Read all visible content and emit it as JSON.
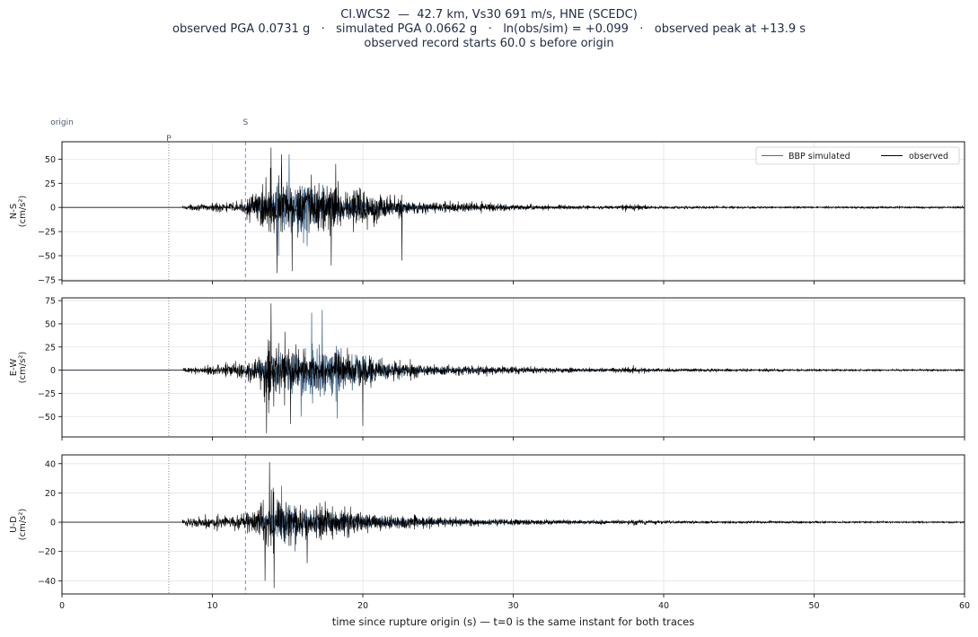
{
  "title": {
    "line1": "CI.WCS2  —  42.7 km, Vs30 691 m/s, HNE (SCEDC)",
    "line2": "observed PGA 0.0731 g   ·   simulated PGA 0.0662 g   ·   ln(obs/sim) = +0.099   ·   observed peak at +13.9 s",
    "line3": "observed record starts 60.0 s before origin"
  },
  "markers": {
    "origin_label": "origin",
    "p_label": "P",
    "s_label": "S",
    "p_time": 7.1,
    "s_time": 12.2
  },
  "xlabel": "time since rupture origin (s)   —   t=0 is the same instant for both traces",
  "xlim": [
    0,
    60
  ],
  "xticks": [
    "0",
    "10",
    "20",
    "30",
    "40",
    "50",
    "60"
  ],
  "legend": {
    "simulated": "BBP simulated",
    "observed": "observed"
  },
  "colors": {
    "observed": "#000000",
    "simulated": "#4a6f95",
    "p_line": "#888888",
    "s_line": "#7b86d9",
    "grid": "#e3e3e3",
    "marker_text": "#4b5777"
  },
  "chart_data": {
    "type": "line",
    "x_unit": "s",
    "xlim": [
      0,
      60
    ],
    "series": [
      {
        "name": "observed",
        "color": "#000000"
      },
      {
        "name": "BBP simulated",
        "color": "#4a6f95"
      }
    ],
    "panels": [
      {
        "component": "N-S",
        "unit": "(cm/s²)",
        "ylim": [
          -76,
          68
        ],
        "yticks": [
          "50",
          "25",
          "0",
          "−25",
          "−50",
          "−75"
        ],
        "ytick_values": [
          50,
          25,
          0,
          -25,
          -50,
          -75
        ],
        "onset": 8.0,
        "observed_envelope": [
          [
            8,
            4
          ],
          [
            10,
            8
          ],
          [
            12,
            12
          ],
          [
            13,
            35
          ],
          [
            14,
            65
          ],
          [
            15,
            48
          ],
          [
            16,
            55
          ],
          [
            17,
            52
          ],
          [
            18,
            46
          ],
          [
            19,
            40
          ],
          [
            20,
            45
          ],
          [
            21,
            30
          ],
          [
            22,
            22
          ],
          [
            24,
            13
          ],
          [
            26,
            10
          ],
          [
            28,
            9
          ],
          [
            30,
            6
          ],
          [
            34,
            4
          ],
          [
            37,
            3
          ],
          [
            38,
            10
          ],
          [
            39,
            3
          ],
          [
            45,
            2
          ],
          [
            60,
            2
          ]
        ],
        "observed_peaks": [
          [
            13.9,
            62
          ],
          [
            14.3,
            -68
          ],
          [
            15.3,
            -66
          ],
          [
            17.9,
            -60
          ],
          [
            22.6,
            -55
          ],
          [
            14.6,
            55
          ],
          [
            18.2,
            45
          ]
        ],
        "simulated_envelope": [
          [
            12.2,
            2
          ],
          [
            13.2,
            20
          ],
          [
            14,
            45
          ],
          [
            15,
            52
          ],
          [
            16,
            50
          ],
          [
            17,
            40
          ],
          [
            18,
            30
          ],
          [
            19,
            22
          ],
          [
            21,
            12
          ],
          [
            24,
            6
          ],
          [
            28,
            3
          ],
          [
            32,
            2
          ],
          [
            35,
            1
          ],
          [
            40,
            0
          ]
        ],
        "simulated_peaks": [
          [
            15.1,
            55
          ],
          [
            14.4,
            -50
          ],
          [
            16.3,
            -40
          ]
        ]
      },
      {
        "component": "E-W",
        "unit": "(cm/s²)",
        "ylim": [
          -72,
          78
        ],
        "yticks": [
          "75",
          "50",
          "25",
          "0",
          "−25",
          "−50"
        ],
        "ytick_values": [
          75,
          50,
          25,
          0,
          -25,
          -50
        ],
        "onset": 8.0,
        "observed_envelope": [
          [
            8,
            4
          ],
          [
            10,
            10
          ],
          [
            12,
            18
          ],
          [
            13,
            40
          ],
          [
            13.8,
            70
          ],
          [
            15,
            45
          ],
          [
            16,
            42
          ],
          [
            17,
            38
          ],
          [
            18,
            35
          ],
          [
            19,
            34
          ],
          [
            20,
            32
          ],
          [
            21,
            25
          ],
          [
            22,
            20
          ],
          [
            24,
            14
          ],
          [
            26,
            10
          ],
          [
            28,
            9
          ],
          [
            30,
            8
          ],
          [
            34,
            5
          ],
          [
            37,
            4
          ],
          [
            38,
            8
          ],
          [
            39,
            4
          ],
          [
            45,
            3
          ],
          [
            55,
            2
          ],
          [
            60,
            2
          ]
        ],
        "observed_peaks": [
          [
            13.9,
            72
          ],
          [
            13.6,
            -68
          ],
          [
            20,
            -60
          ],
          [
            15.2,
            -58
          ]
        ],
        "simulated_envelope": [
          [
            12.2,
            3
          ],
          [
            13.5,
            25
          ],
          [
            15,
            42
          ],
          [
            16,
            45
          ],
          [
            17,
            58
          ],
          [
            18,
            52
          ],
          [
            19,
            42
          ],
          [
            20,
            30
          ],
          [
            21,
            20
          ],
          [
            23,
            10
          ],
          [
            26,
            6
          ],
          [
            30,
            3
          ],
          [
            35,
            2
          ],
          [
            40,
            1
          ],
          [
            45,
            0
          ]
        ],
        "simulated_peaks": [
          [
            17.3,
            65
          ],
          [
            16.6,
            62
          ],
          [
            18.3,
            -52
          ],
          [
            15.9,
            -50
          ]
        ]
      },
      {
        "component": "U-D",
        "unit": "(cm/s²)",
        "ylim": [
          -49,
          46
        ],
        "yticks": [
          "40",
          "20",
          "0",
          "−20",
          "−40"
        ],
        "ytick_values": [
          40,
          20,
          0,
          -20,
          -40
        ],
        "onset": 8.0,
        "observed_envelope": [
          [
            8,
            3
          ],
          [
            9,
            8
          ],
          [
            12,
            10
          ],
          [
            13,
            20
          ],
          [
            13.8,
            38
          ],
          [
            15,
            30
          ],
          [
            16,
            22
          ],
          [
            17,
            20
          ],
          [
            18,
            22
          ],
          [
            19,
            18
          ],
          [
            20,
            14
          ],
          [
            22,
            10
          ],
          [
            24,
            7
          ],
          [
            28,
            5
          ],
          [
            30,
            4
          ],
          [
            34,
            3
          ],
          [
            37,
            3
          ],
          [
            38,
            4
          ],
          [
            40,
            2
          ],
          [
            60,
            1
          ]
        ],
        "observed_peaks": [
          [
            13.8,
            41
          ],
          [
            14.1,
            -45
          ],
          [
            13.5,
            -40
          ],
          [
            16.3,
            -28
          ]
        ],
        "simulated_envelope": [
          [
            12.2,
            2
          ],
          [
            13.5,
            10
          ],
          [
            14.5,
            22
          ],
          [
            15.5,
            20
          ],
          [
            17,
            14
          ],
          [
            19,
            10
          ],
          [
            22,
            6
          ],
          [
            26,
            3
          ],
          [
            30,
            2
          ],
          [
            35,
            1
          ],
          [
            40,
            0
          ]
        ],
        "simulated_peaks": [
          [
            14.6,
            25
          ],
          [
            15.5,
            -20
          ]
        ]
      }
    ]
  }
}
